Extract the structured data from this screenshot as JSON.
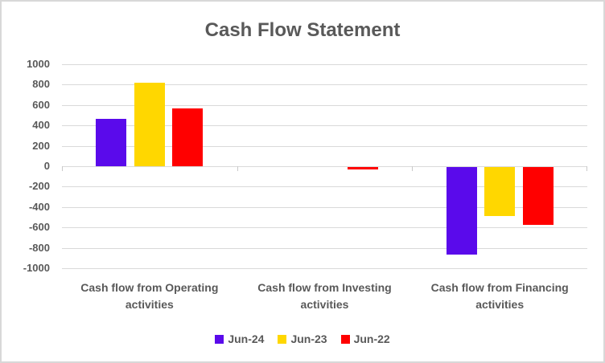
{
  "chart_data": {
    "type": "bar",
    "title": "Cash Flow Statement",
    "categories": [
      "Cash flow from Operating activities",
      "Cash flow from Investing activities",
      "Cash flow from Financing activities"
    ],
    "series": [
      {
        "name": "Jun-24",
        "color": "#5A0AEB",
        "values": [
          465,
          0,
          -860
        ]
      },
      {
        "name": "Jun-23",
        "color": "#FFD700",
        "values": [
          820,
          0,
          -480
        ]
      },
      {
        "name": "Jun-22",
        "color": "#FF0000",
        "values": [
          570,
          -25,
          -570
        ]
      }
    ],
    "ylim": [
      -1000,
      1000
    ],
    "ytick_step": 200,
    "yticks": [
      "1000",
      "800",
      "600",
      "400",
      "200",
      "0",
      "-200",
      "-400",
      "-600",
      "-800",
      "-1000"
    ],
    "xlabel": "",
    "ylabel": "",
    "grid": true,
    "legend_position": "bottom",
    "text_color": "#595959",
    "gridline_color": "#D9D9D9"
  }
}
